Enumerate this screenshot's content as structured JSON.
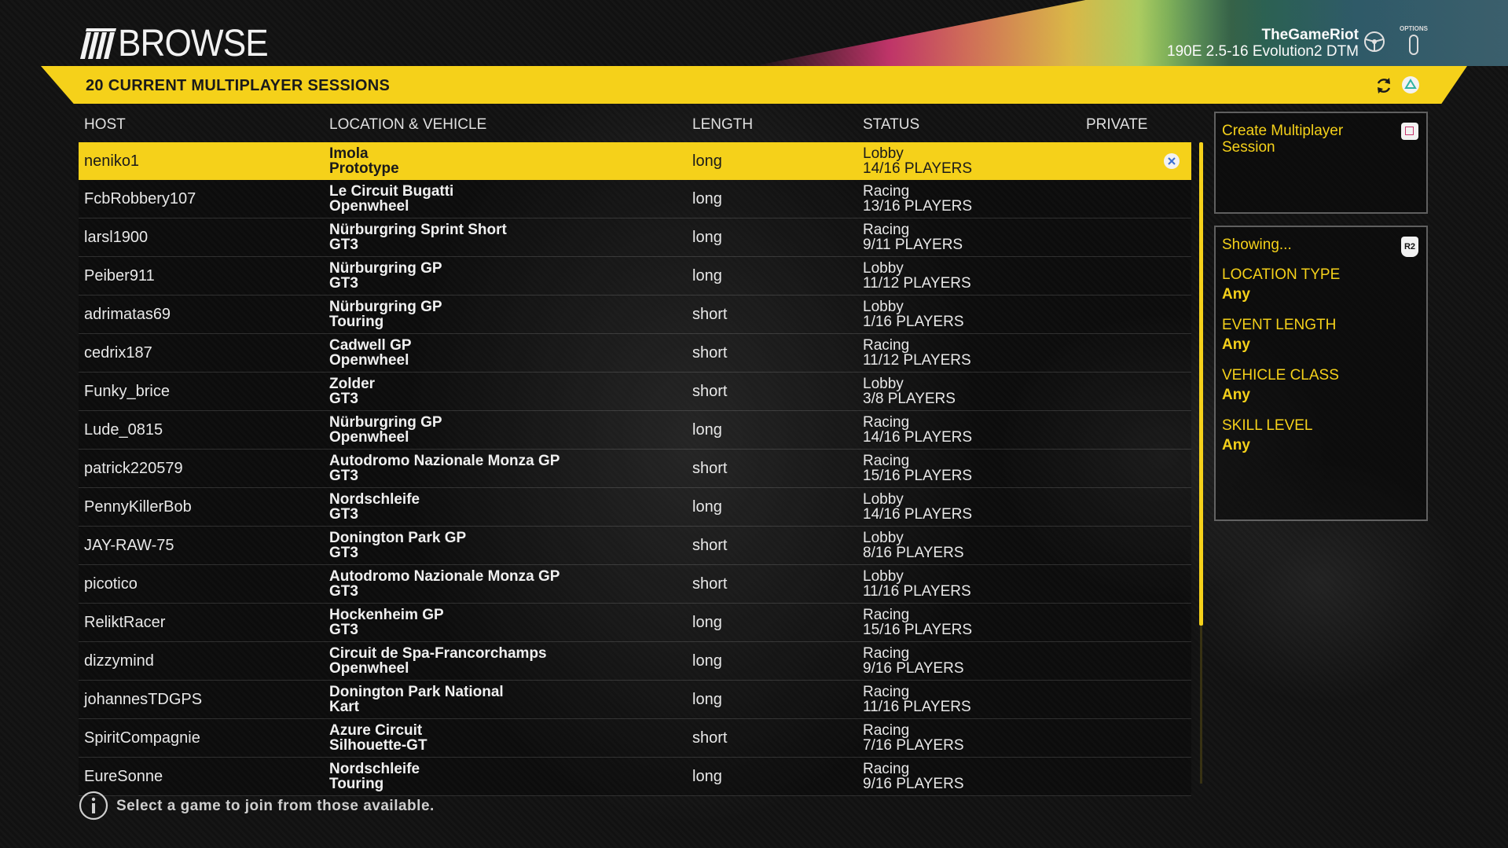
{
  "header": {
    "title": "BROWSE",
    "user_name": "TheGameRiot",
    "vehicle": "190E 2.5-16 Evolution2 DTM",
    "options_label": "OPTIONS"
  },
  "banner": {
    "text": "20 CURRENT MULTIPLAYER SESSIONS"
  },
  "columns": {
    "host": "HOST",
    "location_vehicle": "LOCATION & VEHICLE",
    "length": "LENGTH",
    "status": "STATUS",
    "private": "PRIVATE"
  },
  "sessions": [
    {
      "host": "neniko1",
      "location": "Imola",
      "vehicle": "Prototype",
      "length": "long",
      "status": "Lobby",
      "players": "14/16 PLAYERS",
      "selected": true
    },
    {
      "host": "FcbRobbery107",
      "location": "Le Circuit Bugatti",
      "vehicle": "Openwheel",
      "length": "long",
      "status": "Racing",
      "players": "13/16 PLAYERS"
    },
    {
      "host": "larsl1900",
      "location": "Nürburgring Sprint Short",
      "vehicle": "GT3",
      "length": "long",
      "status": "Racing",
      "players": "9/11 PLAYERS"
    },
    {
      "host": "Peiber911",
      "location": "Nürburgring GP",
      "vehicle": "GT3",
      "length": "long",
      "status": "Lobby",
      "players": "11/12 PLAYERS"
    },
    {
      "host": "adrimatas69",
      "location": "Nürburgring GP",
      "vehicle": "Touring",
      "length": "short",
      "status": "Lobby",
      "players": "1/16 PLAYERS"
    },
    {
      "host": "cedrix187",
      "location": "Cadwell GP",
      "vehicle": "Openwheel",
      "length": "short",
      "status": "Racing",
      "players": "11/12 PLAYERS"
    },
    {
      "host": "Funky_brice",
      "location": "Zolder",
      "vehicle": "GT3",
      "length": "short",
      "status": "Lobby",
      "players": "3/8 PLAYERS"
    },
    {
      "host": "Lude_0815",
      "location": "Nürburgring GP",
      "vehicle": "Openwheel",
      "length": "long",
      "status": "Racing",
      "players": "14/16 PLAYERS"
    },
    {
      "host": "patrick220579",
      "location": "Autodromo Nazionale Monza GP",
      "vehicle": "GT3",
      "length": "short",
      "status": "Racing",
      "players": "15/16 PLAYERS"
    },
    {
      "host": "PennyKillerBob",
      "location": "Nordschleife",
      "vehicle": "GT3",
      "length": "long",
      "status": "Lobby",
      "players": "14/16 PLAYERS"
    },
    {
      "host": "JAY-RAW-75",
      "location": "Donington Park GP",
      "vehicle": "GT3",
      "length": "short",
      "status": "Lobby",
      "players": "8/16 PLAYERS"
    },
    {
      "host": "picotico",
      "location": "Autodromo Nazionale Monza GP",
      "vehicle": "GT3",
      "length": "short",
      "status": "Lobby",
      "players": "11/16 PLAYERS"
    },
    {
      "host": "ReliktRacer",
      "location": "Hockenheim GP",
      "vehicle": "GT3",
      "length": "long",
      "status": "Racing",
      "players": "15/16 PLAYERS"
    },
    {
      "host": "dizzymind",
      "location": "Circuit de Spa-Francorchamps",
      "vehicle": "Openwheel",
      "length": "long",
      "status": "Racing",
      "players": "9/16 PLAYERS"
    },
    {
      "host": "johannesTDGPS",
      "location": "Donington Park National",
      "vehicle": "Kart",
      "length": "long",
      "status": "Racing",
      "players": "11/16 PLAYERS"
    },
    {
      "host": "SpiritCompagnie",
      "location": "Azure Circuit",
      "vehicle": "Silhouette-GT",
      "length": "short",
      "status": "Racing",
      "players": "7/16 PLAYERS"
    },
    {
      "host": "EureSonne",
      "location": "Nordschleife",
      "vehicle": "Touring",
      "length": "long",
      "status": "Racing",
      "players": "9/16 PLAYERS"
    }
  ],
  "sidebar": {
    "create_label": "Create Multiplayer Session",
    "showing_label": "Showing...",
    "r2_label": "R2",
    "filters": [
      {
        "key": "LOCATION TYPE",
        "value": "Any"
      },
      {
        "key": "EVENT LENGTH",
        "value": "Any"
      },
      {
        "key": "VEHICLE CLASS",
        "value": "Any"
      },
      {
        "key": "SKILL LEVEL",
        "value": "Any"
      }
    ]
  },
  "footer": {
    "hint": "Select a game to join from those available."
  },
  "colors": {
    "accent_yellow": "#f5d11a",
    "background": "#0d0d0d"
  },
  "icons": [
    "logo-icon",
    "steering-wheel-icon",
    "options-button-icon",
    "refresh-icon",
    "triangle-icon",
    "close-icon",
    "square-button-icon",
    "r2-button-icon",
    "info-icon"
  ]
}
